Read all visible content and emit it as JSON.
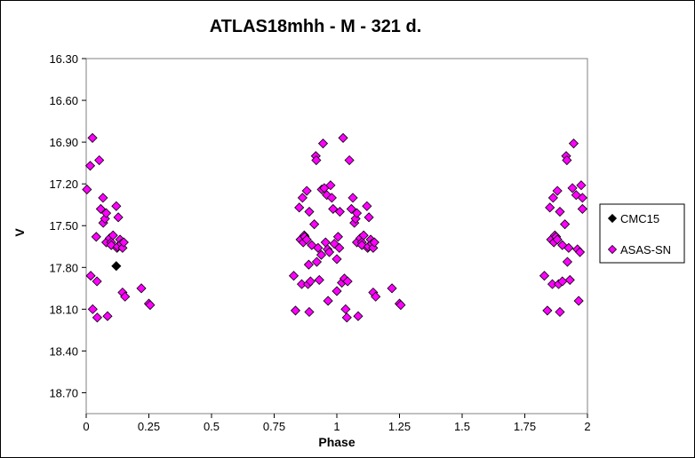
{
  "chart_data": {
    "type": "scatter",
    "title": "ATLAS18mhh - M - 321 d.",
    "xlabel": "Phase",
    "ylabel": "V",
    "xlim": [
      0,
      2
    ],
    "ylim": [
      16.3,
      18.85
    ],
    "y_inverted": true,
    "x_ticks": [
      "0",
      "0.25",
      "0.5",
      "0.75",
      "1",
      "1.25",
      "1.5",
      "1.75",
      "2"
    ],
    "y_ticks": [
      "16.30",
      "16.60",
      "16.90",
      "17.20",
      "17.50",
      "17.80",
      "18.10",
      "18.40",
      "18.70"
    ],
    "grid": false,
    "legend_position": "right",
    "series": [
      {
        "name": "CMC15",
        "color": "#000000",
        "marker": "diamond",
        "points": [
          [
            0.12,
            17.79
          ]
        ]
      },
      {
        "name": "ASAS-SN",
        "color": "#ff00ff",
        "marker": "diamond",
        "points": [
          [
            0.003,
            17.24
          ],
          [
            0.016,
            17.07
          ],
          [
            0.018,
            17.86
          ],
          [
            0.025,
            16.87
          ],
          [
            0.026,
            18.1
          ],
          [
            0.04,
            17.58
          ],
          [
            0.043,
            17.9
          ],
          [
            0.044,
            18.16
          ],
          [
            0.052,
            17.03
          ],
          [
            0.058,
            17.38
          ],
          [
            0.067,
            17.3
          ],
          [
            0.068,
            17.48
          ],
          [
            0.075,
            17.45
          ],
          [
            0.08,
            17.41
          ],
          [
            0.08,
            17.62
          ],
          [
            0.085,
            18.15
          ],
          [
            0.094,
            17.59
          ],
          [
            0.1,
            17.62
          ],
          [
            0.1,
            17.64
          ],
          [
            0.107,
            17.57
          ],
          [
            0.12,
            17.36
          ],
          [
            0.123,
            17.66
          ],
          [
            0.126,
            17.65
          ],
          [
            0.128,
            17.44
          ],
          [
            0.135,
            17.6
          ],
          [
            0.14,
            17.63
          ],
          [
            0.145,
            17.66
          ],
          [
            0.145,
            17.98
          ],
          [
            0.15,
            17.62
          ],
          [
            0.155,
            18.01
          ],
          [
            0.22,
            17.95
          ],
          [
            0.25,
            18.06
          ],
          [
            0.255,
            18.07
          ],
          [
            0.828,
            17.86
          ],
          [
            0.835,
            18.11
          ],
          [
            0.85,
            17.37
          ],
          [
            0.855,
            17.6
          ],
          [
            0.86,
            17.92
          ],
          [
            0.863,
            17.3
          ],
          [
            0.866,
            17.62
          ],
          [
            0.87,
            17.57
          ],
          [
            0.872,
            17.58
          ],
          [
            0.88,
            17.6
          ],
          [
            0.88,
            17.25
          ],
          [
            0.885,
            17.92
          ],
          [
            0.888,
            17.78
          ],
          [
            0.89,
            18.12
          ],
          [
            0.89,
            17.4
          ],
          [
            0.895,
            17.9
          ],
          [
            0.9,
            17.64
          ],
          [
            0.91,
            17.49
          ],
          [
            0.916,
            17.0
          ],
          [
            0.918,
            17.03
          ],
          [
            0.92,
            17.76
          ],
          [
            0.925,
            17.66
          ],
          [
            0.93,
            17.89
          ],
          [
            0.938,
            17.71
          ],
          [
            0.94,
            17.24
          ],
          [
            0.945,
            16.91
          ],
          [
            0.95,
            17.23
          ],
          [
            0.955,
            17.62
          ],
          [
            0.96,
            17.28
          ],
          [
            0.963,
            17.67
          ],
          [
            0.965,
            18.04
          ],
          [
            0.97,
            17.69
          ],
          [
            0.975,
            17.21
          ],
          [
            0.98,
            17.3
          ],
          [
            0.985,
            17.38
          ],
          [
            0.99,
            17.63
          ],
          [
            1.0,
            17.74
          ],
          [
            1.0,
            17.97
          ],
          [
            1.005,
            17.58
          ],
          [
            1.01,
            17.66
          ],
          [
            1.012,
            17.4
          ],
          [
            1.02,
            17.91
          ],
          [
            1.025,
            16.87
          ],
          [
            1.03,
            17.88
          ],
          [
            1.035,
            18.1
          ],
          [
            1.04,
            18.16
          ],
          [
            1.043,
            17.9
          ],
          [
            1.05,
            17.03
          ],
          [
            1.058,
            17.38
          ],
          [
            1.064,
            17.3
          ],
          [
            1.07,
            17.48
          ],
          [
            1.075,
            17.45
          ],
          [
            1.08,
            17.41
          ],
          [
            1.08,
            17.62
          ],
          [
            1.085,
            18.15
          ],
          [
            1.094,
            17.59
          ],
          [
            1.1,
            17.62
          ],
          [
            1.1,
            17.64
          ],
          [
            1.107,
            17.57
          ],
          [
            1.12,
            17.36
          ],
          [
            1.123,
            17.66
          ],
          [
            1.126,
            17.65
          ],
          [
            1.128,
            17.44
          ],
          [
            1.135,
            17.6
          ],
          [
            1.14,
            17.63
          ],
          [
            1.145,
            17.66
          ],
          [
            1.145,
            17.98
          ],
          [
            1.15,
            17.62
          ],
          [
            1.155,
            18.01
          ],
          [
            1.22,
            17.95
          ],
          [
            1.25,
            18.06
          ],
          [
            1.255,
            18.07
          ],
          [
            1.828,
            17.86
          ],
          [
            1.84,
            18.11
          ],
          [
            1.85,
            17.37
          ],
          [
            1.855,
            17.6
          ],
          [
            1.86,
            17.92
          ],
          [
            1.863,
            17.3
          ],
          [
            1.866,
            17.62
          ],
          [
            1.87,
            17.57
          ],
          [
            1.875,
            17.58
          ],
          [
            1.88,
            17.6
          ],
          [
            1.88,
            17.25
          ],
          [
            1.885,
            17.92
          ],
          [
            1.89,
            18.12
          ],
          [
            1.89,
            17.4
          ],
          [
            1.9,
            17.9
          ],
          [
            1.9,
            17.64
          ],
          [
            1.91,
            17.49
          ],
          [
            1.915,
            17.0
          ],
          [
            1.918,
            17.03
          ],
          [
            1.92,
            17.76
          ],
          [
            1.925,
            17.66
          ],
          [
            1.93,
            17.89
          ],
          [
            1.94,
            17.23
          ],
          [
            1.945,
            16.91
          ],
          [
            1.955,
            17.28
          ],
          [
            1.96,
            17.67
          ],
          [
            1.965,
            18.04
          ],
          [
            1.97,
            17.69
          ],
          [
            1.975,
            17.21
          ],
          [
            1.98,
            17.38
          ],
          [
            1.98,
            17.3
          ]
        ]
      }
    ]
  }
}
